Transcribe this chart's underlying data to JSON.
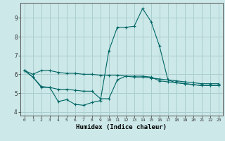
{
  "xlabel": "Humidex (Indice chaleur)",
  "background_color": "#cce8e8",
  "grid_color": "#aacece",
  "line_color": "#006666",
  "xlim": [
    -0.5,
    23.5
  ],
  "ylim": [
    3.8,
    9.8
  ],
  "yticks": [
    4,
    5,
    6,
    7,
    8,
    9
  ],
  "xticks": [
    0,
    1,
    2,
    3,
    4,
    5,
    6,
    7,
    8,
    9,
    10,
    11,
    12,
    13,
    14,
    15,
    16,
    17,
    18,
    19,
    20,
    21,
    22,
    23
  ],
  "series": [
    [
      6.2,
      6.0,
      6.2,
      6.2,
      6.1,
      6.05,
      6.05,
      6.0,
      6.0,
      5.95,
      5.95,
      5.95,
      5.9,
      5.85,
      5.85,
      5.8,
      5.75,
      5.7,
      5.65,
      5.6,
      5.55,
      5.5,
      5.5,
      5.5
    ],
    [
      6.2,
      5.85,
      5.35,
      5.3,
      4.55,
      4.65,
      4.4,
      4.35,
      4.5,
      4.6,
      7.25,
      8.5,
      8.5,
      8.55,
      9.5,
      8.8,
      7.5,
      5.7,
      5.55,
      5.5,
      5.45,
      5.4,
      5.4,
      5.4
    ],
    [
      6.2,
      5.85,
      5.3,
      5.3,
      5.2,
      5.2,
      5.15,
      5.1,
      5.1,
      4.7,
      4.7,
      5.7,
      5.9,
      5.9,
      5.9,
      5.85,
      5.65,
      5.6,
      5.55,
      5.5,
      5.45,
      5.4,
      5.4,
      5.4
    ]
  ]
}
